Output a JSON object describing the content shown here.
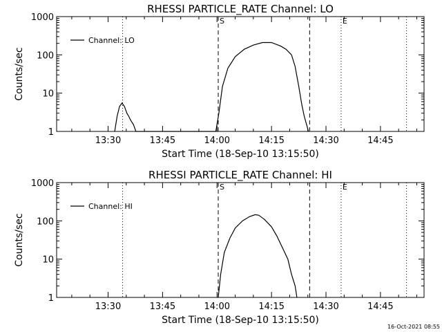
{
  "chart_data": [
    {
      "type": "line",
      "title": "RHESSI PARTICLE_RATE Channel: LO",
      "xlabel": "Start Time (18-Sep-10 13:15:50)",
      "ylabel": "Counts/sec",
      "y_scale": "log",
      "xlim": [
        "13:15:50",
        "14:57:00"
      ],
      "ylim": [
        1,
        1000
      ],
      "x_ticks": [
        "13:30",
        "13:45",
        "14:00",
        "14:15",
        "14:30",
        "14:45"
      ],
      "y_ticks": [
        "1",
        "10",
        "100",
        "1000"
      ],
      "grid": false,
      "legend_position": "top-left",
      "series": [
        {
          "name": "Channel: LO",
          "color": "#000000",
          "x": [
            "13:31:50",
            "13:32:30",
            "13:33:10",
            "13:33:50",
            "13:34:30",
            "13:35:10",
            "13:35:40",
            "13:36:10",
            "13:37:00",
            "13:37:40",
            "13:59:40",
            "14:00:30",
            "14:01:30",
            "14:03:00",
            "14:05:00",
            "14:07:30",
            "14:10:00",
            "14:12:30",
            "14:15:00",
            "14:17:30",
            "14:19:00",
            "14:20:30",
            "14:21:30",
            "14:22:30",
            "14:23:20",
            "14:24:00",
            "14:24:40",
            "14:25:10"
          ],
          "y": [
            1,
            2.5,
            4.5,
            5.5,
            4.5,
            3,
            2.5,
            2,
            1.5,
            1,
            1,
            3,
            15,
            45,
            90,
            140,
            180,
            210,
            210,
            170,
            140,
            100,
            50,
            15,
            5,
            2.5,
            1.5,
            1
          ]
        }
      ],
      "vertical_markers": [
        {
          "time": "13:34:00",
          "style": "dotted",
          "label": ""
        },
        {
          "time": "14:00:20",
          "style": "dashed",
          "label": "S"
        },
        {
          "time": "14:25:30",
          "style": "dashed",
          "label": ""
        },
        {
          "time": "14:34:10",
          "style": "dotted",
          "label": "E"
        },
        {
          "time": "14:52:10",
          "style": "dotted",
          "label": ""
        }
      ]
    },
    {
      "type": "line",
      "title": "RHESSI PARTICLE_RATE Channel: HI",
      "xlabel": "Start Time (18-Sep-10 13:15:50)",
      "ylabel": "Counts/sec",
      "y_scale": "log",
      "xlim": [
        "13:15:50",
        "14:57:00"
      ],
      "ylim": [
        1,
        1000
      ],
      "x_ticks": [
        "13:30",
        "13:45",
        "14:00",
        "14:15",
        "14:30",
        "14:45"
      ],
      "y_ticks": [
        "1",
        "10",
        "100",
        "1000"
      ],
      "grid": false,
      "legend_position": "top-left",
      "series": [
        {
          "name": "Channel: HI",
          "color": "#000000",
          "x": [
            "14:00:20",
            "14:01:00",
            "14:02:00",
            "14:03:30",
            "14:05:00",
            "14:07:00",
            "14:09:00",
            "14:10:30",
            "14:11:30",
            "14:13:00",
            "14:15:00",
            "14:16:30",
            "14:18:00",
            "14:19:30",
            "14:20:30",
            "14:21:30",
            "14:22:00"
          ],
          "y": [
            1,
            4,
            15,
            35,
            65,
            100,
            130,
            145,
            140,
            110,
            70,
            40,
            20,
            10,
            4,
            2,
            1
          ]
        }
      ],
      "vertical_markers": [
        {
          "time": "13:34:00",
          "style": "dotted",
          "label": ""
        },
        {
          "time": "14:00:20",
          "style": "dashed",
          "label": "S"
        },
        {
          "time": "14:25:30",
          "style": "dashed",
          "label": ""
        },
        {
          "time": "14:34:10",
          "style": "dotted",
          "label": "E"
        },
        {
          "time": "14:52:10",
          "style": "dotted",
          "label": ""
        }
      ]
    }
  ],
  "footer": {
    "timestamp": "16-Oct-2021 08:55"
  }
}
